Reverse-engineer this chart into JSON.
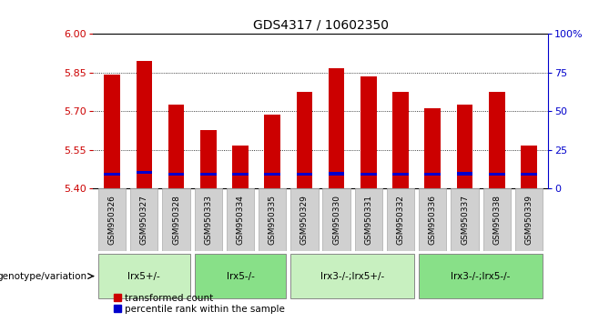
{
  "title": "GDS4317 / 10602350",
  "samples": [
    "GSM950326",
    "GSM950327",
    "GSM950328",
    "GSM950333",
    "GSM950334",
    "GSM950335",
    "GSM950329",
    "GSM950330",
    "GSM950331",
    "GSM950332",
    "GSM950336",
    "GSM950337",
    "GSM950338",
    "GSM950339"
  ],
  "red_values": [
    5.84,
    5.895,
    5.725,
    5.625,
    5.565,
    5.685,
    5.775,
    5.865,
    5.835,
    5.775,
    5.71,
    5.725,
    5.775,
    5.565
  ],
  "blue_values": [
    5.455,
    5.462,
    5.455,
    5.455,
    5.455,
    5.455,
    5.455,
    5.458,
    5.455,
    5.455,
    5.455,
    5.457,
    5.455,
    5.455
  ],
  "ymin": 5.4,
  "ymax": 6.0,
  "yticks": [
    5.4,
    5.55,
    5.7,
    5.85,
    6.0
  ],
  "right_yticks": [
    0,
    25,
    50,
    75,
    100
  ],
  "right_ylabels": [
    "0",
    "25",
    "50",
    "75",
    "100%"
  ],
  "groups": [
    {
      "label": "lrx5+/-",
      "start": 0,
      "end": 3,
      "color": "#c8f0c0"
    },
    {
      "label": "lrx5-/-",
      "start": 3,
      "end": 6,
      "color": "#88e088"
    },
    {
      "label": "lrx3-/-;lrx5+/-",
      "start": 6,
      "end": 10,
      "color": "#c8f0c0"
    },
    {
      "label": "lrx3-/-;lrx5-/-",
      "start": 10,
      "end": 14,
      "color": "#88e088"
    }
  ],
  "genotype_label": "genotype/variation",
  "legend_red": "transformed count",
  "legend_blue": "percentile rank within the sample",
  "bar_width": 0.5,
  "red_color": "#cc0000",
  "blue_color": "#0000cc",
  "axis_color": "#cc0000",
  "right_axis_color": "#0000cc",
  "grid_color": "#000000",
  "background_color": "#ffffff",
  "plot_bg_color": "#ffffff",
  "sample_bg_color": "#d0d0d0",
  "title_fontsize": 10
}
